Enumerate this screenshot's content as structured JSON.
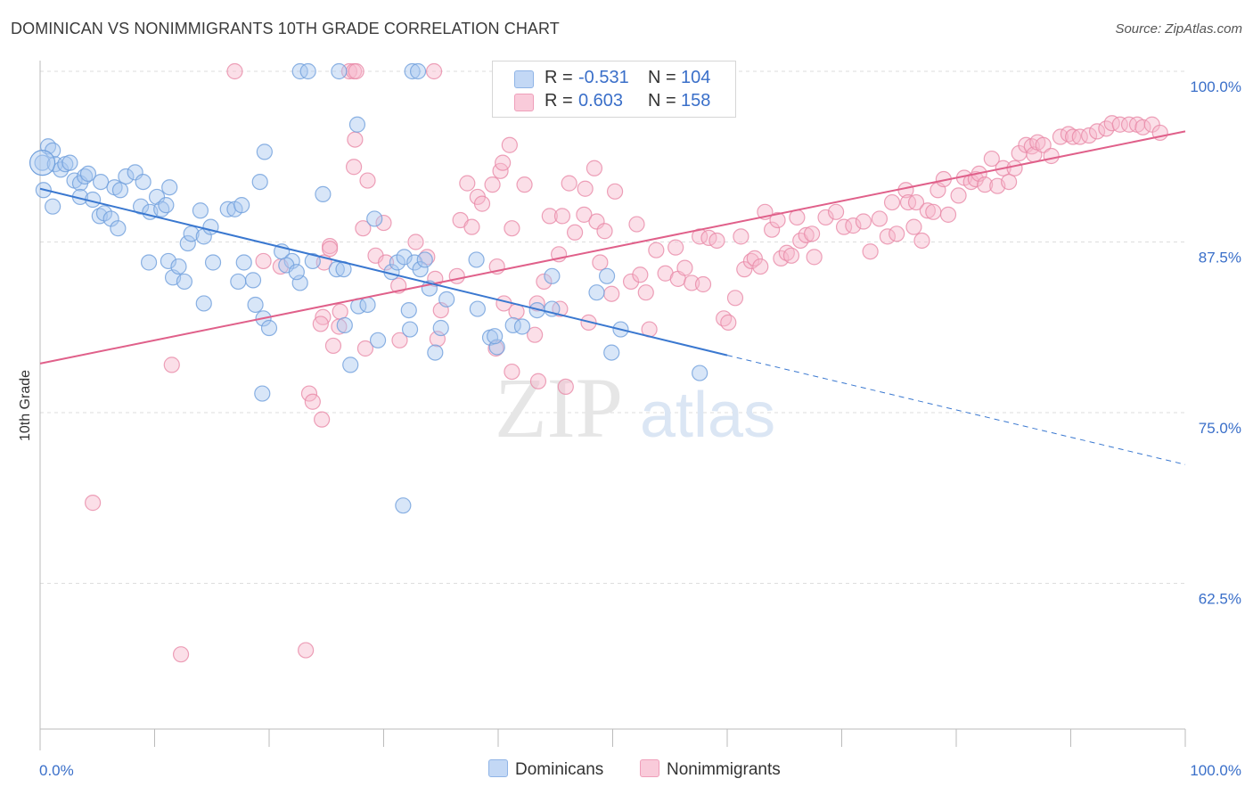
{
  "header": {
    "title": "DOMINICAN VS NONIMMIGRANTS 10TH GRADE CORRELATION CHART",
    "source": "Source: ZipAtlas.com"
  },
  "watermark": {
    "zip": "ZIP",
    "atlas": "atlas"
  },
  "legend": {
    "r_label": "R =",
    "n_label": "N =",
    "rows": [
      {
        "r": "-0.531",
        "n": "104",
        "color": "#a9c8f0"
      },
      {
        "r": "0.603",
        "n": "158",
        "color": "#f6b8cc"
      }
    ]
  },
  "bottom_legend": [
    {
      "label": "Dominicans",
      "color": "#a9c8f0"
    },
    {
      "label": "Nonimmigrants",
      "color": "#f6b8cc"
    }
  ],
  "colors": {
    "blue_fill": "#a9c8f0",
    "blue_stroke": "#6f9fdc",
    "blue_line": "#3a78d0",
    "pink_fill": "#f6b8cc",
    "pink_stroke": "#e88aa8",
    "pink_line": "#e0608a",
    "tick_label": "#3a6fc9",
    "grid": "#dddddd"
  },
  "chart_data": {
    "type": "scatter",
    "title": "DOMINICAN VS NONIMMIGRANTS 10TH GRADE CORRELATION CHART",
    "xlabel": "",
    "ylabel": "10th Grade",
    "xlim": [
      0,
      100
    ],
    "ylim": [
      50,
      101
    ],
    "x_tick_labels": [
      "0.0%",
      "100.0%"
    ],
    "y_ticks": [
      62.5,
      75.0,
      87.5,
      100.0
    ],
    "y_tick_labels": [
      "62.5%",
      "75.0%",
      "87.5%",
      "100.0%"
    ],
    "grid": "horizontal dashed",
    "series": [
      {
        "name": "Dominicans",
        "r": -0.531,
        "n": 104,
        "trend": {
          "x": [
            0,
            60
          ],
          "y": [
            91.4,
            79.2
          ],
          "dashed_to": [
            100,
            71.2
          ]
        },
        "points": [
          [
            0.2,
            93.3
          ],
          [
            0.7,
            94.5
          ],
          [
            1.1,
            94.2
          ],
          [
            1.3,
            93.2
          ],
          [
            1.8,
            92.8
          ],
          [
            2.2,
            93.2
          ],
          [
            2.6,
            93.3
          ],
          [
            3,
            92
          ],
          [
            3.5,
            91.8
          ],
          [
            3.9,
            92.3
          ],
          [
            4.2,
            92.5
          ],
          [
            3.5,
            90.8
          ],
          [
            4.6,
            90.6
          ],
          [
            5.2,
            89.4
          ],
          [
            5.6,
            89.6
          ],
          [
            6.2,
            89.2
          ],
          [
            5.3,
            91.9
          ],
          [
            6.5,
            91.5
          ],
          [
            7,
            91.3
          ],
          [
            7.5,
            92.3
          ],
          [
            8.3,
            92.6
          ],
          [
            9,
            91.9
          ],
          [
            8.8,
            90.1
          ],
          [
            9.6,
            89.7
          ],
          [
            10.2,
            90.8
          ],
          [
            6.8,
            88.5
          ],
          [
            10.6,
            89.9
          ],
          [
            11.3,
            91.5
          ],
          [
            11,
            90.2
          ],
          [
            9.5,
            86
          ],
          [
            11.2,
            86.1
          ],
          [
            11.6,
            84.9
          ],
          [
            12.1,
            85.7
          ],
          [
            12.6,
            84.6
          ],
          [
            12.9,
            87.4
          ],
          [
            13.2,
            88.1
          ],
          [
            14,
            89.8
          ],
          [
            14.3,
            87.9
          ],
          [
            14.9,
            88.6
          ],
          [
            16.4,
            89.9
          ],
          [
            17,
            89.9
          ],
          [
            17.6,
            90.2
          ],
          [
            15.1,
            86
          ],
          [
            14.3,
            83
          ],
          [
            17.3,
            84.6
          ],
          [
            17.8,
            86
          ],
          [
            18.6,
            84.7
          ],
          [
            18.8,
            82.9
          ],
          [
            19.2,
            91.9
          ],
          [
            19.6,
            94.1
          ],
          [
            19.5,
            81.9
          ],
          [
            20,
            81.2
          ],
          [
            19.4,
            76.4
          ],
          [
            21.1,
            86.8
          ],
          [
            22,
            86.1
          ],
          [
            21.5,
            85.8
          ],
          [
            22.7,
            84.5
          ],
          [
            22.4,
            85.3
          ],
          [
            23.8,
            86.1
          ],
          [
            24.7,
            91
          ],
          [
            25.9,
            85.5
          ],
          [
            26.5,
            85.5
          ],
          [
            26.6,
            81.4
          ],
          [
            27.8,
            82.8
          ],
          [
            27.1,
            78.5
          ],
          [
            28.6,
            82.9
          ],
          [
            29.5,
            80.3
          ],
          [
            29.2,
            89.2
          ],
          [
            30.7,
            85.3
          ],
          [
            31.2,
            86
          ],
          [
            31.8,
            86.4
          ],
          [
            32.2,
            82.5
          ],
          [
            32.3,
            81.1
          ],
          [
            32.7,
            86
          ],
          [
            33.2,
            85.5
          ],
          [
            34,
            84.1
          ],
          [
            33.6,
            86.2
          ],
          [
            34.5,
            79.4
          ],
          [
            35,
            81.2
          ],
          [
            35.5,
            83.3
          ],
          [
            38.1,
            86.2
          ],
          [
            38.2,
            82.6
          ],
          [
            39.3,
            80.5
          ],
          [
            39.9,
            79.8
          ],
          [
            39.7,
            80.6
          ],
          [
            41.3,
            81.4
          ],
          [
            42.1,
            81.3
          ],
          [
            43.4,
            82.5
          ],
          [
            44.7,
            85
          ],
          [
            44.7,
            82.6
          ],
          [
            48.6,
            83.8
          ],
          [
            49.9,
            79.4
          ],
          [
            49.5,
            85
          ],
          [
            50.7,
            81.1
          ],
          [
            57.6,
            77.9
          ],
          [
            26.1,
            100
          ],
          [
            22.7,
            100
          ],
          [
            23.4,
            100
          ],
          [
            32.5,
            100
          ],
          [
            33,
            100
          ],
          [
            27.7,
            96.1
          ],
          [
            31.7,
            68.2
          ],
          [
            0.3,
            91.3
          ],
          [
            1.1,
            90.1
          ]
        ]
      },
      {
        "name": "Nonimmigrants",
        "r": 0.603,
        "n": 158,
        "trend": {
          "x": [
            0,
            100
          ],
          "y": [
            78.6,
            95.6
          ]
        },
        "points": [
          [
            17,
            100
          ],
          [
            27,
            100
          ],
          [
            27.4,
            100
          ],
          [
            34.4,
            100
          ],
          [
            27.6,
            100
          ],
          [
            27.5,
            95
          ],
          [
            28.6,
            92
          ],
          [
            27.4,
            93
          ],
          [
            25.3,
            87.2
          ],
          [
            24.8,
            86
          ],
          [
            25.3,
            87
          ],
          [
            24.7,
            82
          ],
          [
            26.2,
            82.4
          ],
          [
            24.5,
            81.5
          ],
          [
            26.1,
            81.3
          ],
          [
            25.6,
            79.9
          ],
          [
            23.5,
            76.4
          ],
          [
            23.8,
            75.8
          ],
          [
            24.6,
            74.5
          ],
          [
            23.2,
            57.6
          ],
          [
            11.5,
            78.5
          ],
          [
            4.6,
            68.4
          ],
          [
            12.3,
            57.3
          ],
          [
            19.5,
            86.1
          ],
          [
            21,
            85.7
          ],
          [
            29.3,
            86.5
          ],
          [
            28.4,
            79.7
          ],
          [
            28.2,
            88.5
          ],
          [
            30,
            88.9
          ],
          [
            30.2,
            86
          ],
          [
            31.4,
            80.3
          ],
          [
            31.3,
            84.3
          ],
          [
            32.8,
            87.5
          ],
          [
            33.8,
            86.4
          ],
          [
            34.5,
            84.8
          ],
          [
            35,
            82.5
          ],
          [
            34.7,
            80.4
          ],
          [
            36.4,
            85
          ],
          [
            36.7,
            89.1
          ],
          [
            37.3,
            91.8
          ],
          [
            37.7,
            88.6
          ],
          [
            38.2,
            90.8
          ],
          [
            38.6,
            90.3
          ],
          [
            39.5,
            91.7
          ],
          [
            39.8,
            79.7
          ],
          [
            39.9,
            85.7
          ],
          [
            40.2,
            92.7
          ],
          [
            40.4,
            93.3
          ],
          [
            40.5,
            83
          ],
          [
            41.2,
            78
          ],
          [
            41,
            94.6
          ],
          [
            41.2,
            88.5
          ],
          [
            41.6,
            82.4
          ],
          [
            42.3,
            91.7
          ],
          [
            43.4,
            83
          ],
          [
            43.2,
            80.7
          ],
          [
            43.5,
            77.3
          ],
          [
            44,
            84.6
          ],
          [
            44.5,
            89.4
          ],
          [
            45.3,
            86.6
          ],
          [
            45.6,
            89.4
          ],
          [
            45.4,
            82.6
          ],
          [
            45.9,
            76.9
          ],
          [
            46.2,
            91.8
          ],
          [
            46.7,
            88.2
          ],
          [
            47.6,
            91.4
          ],
          [
            47.5,
            89.5
          ],
          [
            47.9,
            81.6
          ],
          [
            48.6,
            89
          ],
          [
            48.9,
            86
          ],
          [
            48.4,
            92.9
          ],
          [
            49.3,
            88.3
          ],
          [
            49.9,
            83.7
          ],
          [
            50.2,
            91.2
          ],
          [
            51.6,
            84.6
          ],
          [
            52.1,
            88.8
          ],
          [
            52.4,
            85.1
          ],
          [
            52.9,
            83.8
          ],
          [
            53.2,
            81.1
          ],
          [
            53.8,
            86.9
          ],
          [
            54.6,
            85.2
          ],
          [
            55.5,
            87.1
          ],
          [
            55.7,
            84.8
          ],
          [
            56.3,
            85.6
          ],
          [
            56.9,
            84.5
          ],
          [
            57.6,
            87.9
          ],
          [
            57.9,
            84.4
          ],
          [
            58.4,
            87.8
          ],
          [
            59.1,
            87.6
          ],
          [
            59.7,
            81.9
          ],
          [
            60.1,
            81.6
          ],
          [
            60.7,
            83.4
          ],
          [
            61.2,
            87.9
          ],
          [
            61.5,
            85.5
          ],
          [
            62.1,
            86.1
          ],
          [
            62.4,
            86.3
          ],
          [
            62.9,
            85.7
          ],
          [
            63.3,
            89.7
          ],
          [
            63.9,
            88.4
          ],
          [
            64.4,
            89.1
          ],
          [
            64.7,
            86.3
          ],
          [
            65.2,
            86.7
          ],
          [
            65.6,
            86.5
          ],
          [
            66.1,
            89.3
          ],
          [
            66.4,
            87.6
          ],
          [
            66.9,
            88
          ],
          [
            67.4,
            88.1
          ],
          [
            67.6,
            86.4
          ],
          [
            68.6,
            89.3
          ],
          [
            69.5,
            89.7
          ],
          [
            70.2,
            88.6
          ],
          [
            71,
            88.7
          ],
          [
            71.9,
            89
          ],
          [
            72.5,
            86.8
          ],
          [
            73.3,
            89.2
          ],
          [
            74,
            87.9
          ],
          [
            74.4,
            90.4
          ],
          [
            74.8,
            88.1
          ],
          [
            75.6,
            91.3
          ],
          [
            75.8,
            90.4
          ],
          [
            76.3,
            88.6
          ],
          [
            76.5,
            90.4
          ],
          [
            77,
            87.6
          ],
          [
            77.5,
            89.8
          ],
          [
            78,
            89.7
          ],
          [
            78.4,
            91.3
          ],
          [
            78.9,
            92.1
          ],
          [
            79.3,
            89.5
          ],
          [
            80.2,
            90.9
          ],
          [
            80.7,
            92.2
          ],
          [
            81.3,
            91.9
          ],
          [
            81.7,
            92.1
          ],
          [
            82,
            92.5
          ],
          [
            82.5,
            91.7
          ],
          [
            83.1,
            93.6
          ],
          [
            83.6,
            91.6
          ],
          [
            84.1,
            92.9
          ],
          [
            84.6,
            91.9
          ],
          [
            85.1,
            92.9
          ],
          [
            85.5,
            94
          ],
          [
            86.1,
            94.6
          ],
          [
            86.6,
            94.5
          ],
          [
            86.8,
            93.9
          ],
          [
            87.1,
            94.8
          ],
          [
            87.6,
            94.6
          ],
          [
            88.3,
            93.8
          ],
          [
            89.1,
            95.2
          ],
          [
            89.8,
            95.4
          ],
          [
            90.2,
            95.2
          ],
          [
            90.8,
            95.2
          ],
          [
            91.6,
            95.3
          ],
          [
            92.3,
            95.6
          ],
          [
            93.1,
            95.8
          ],
          [
            93.6,
            96.2
          ],
          [
            94.3,
            96.1
          ],
          [
            95.1,
            96.1
          ],
          [
            95.8,
            96.1
          ],
          [
            96.3,
            95.9
          ],
          [
            97.1,
            96.1
          ],
          [
            97.8,
            95.5
          ]
        ]
      }
    ]
  }
}
